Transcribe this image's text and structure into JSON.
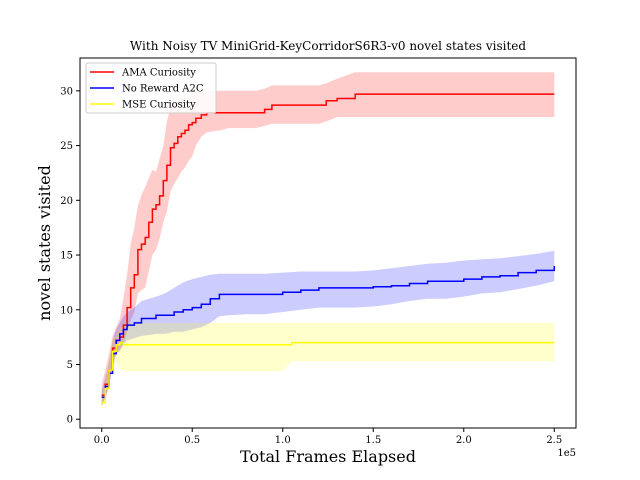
{
  "chart_data": {
    "type": "line",
    "title": "With Noisy TV MiniGrid-KeyCorridorS6R3-v0 novel states visited",
    "xlabel": "Total Frames Elapsed",
    "ylabel": "novel states visited",
    "x_offset_label": "1e5",
    "xlim": [
      -0.12,
      2.62
    ],
    "ylim": [
      -0.8,
      33
    ],
    "xticks": [
      0,
      0.5,
      1.0,
      1.5,
      2.0,
      2.5
    ],
    "xtick_labels": [
      "0.0",
      "0.5",
      "1.0",
      "1.5",
      "2.0",
      "2.5"
    ],
    "yticks": [
      0,
      5,
      10,
      15,
      20,
      25,
      30
    ],
    "ytick_labels": [
      "0",
      "5",
      "10",
      "15",
      "20",
      "25",
      "30"
    ],
    "grid": false,
    "legend_position": "top-left",
    "series": [
      {
        "name": "AMA Curiosity",
        "color": "#ff0000",
        "fill": "#ff0000",
        "x": [
          0,
          0.02,
          0.04,
          0.06,
          0.08,
          0.1,
          0.12,
          0.14,
          0.16,
          0.18,
          0.2,
          0.22,
          0.24,
          0.26,
          0.28,
          0.3,
          0.32,
          0.34,
          0.36,
          0.38,
          0.4,
          0.42,
          0.44,
          0.46,
          0.48,
          0.5,
          0.52,
          0.55,
          0.58,
          0.62,
          0.66,
          0.7,
          0.75,
          0.8,
          0.85,
          0.9,
          0.94,
          1.0,
          1.1,
          1.2,
          1.24,
          1.3,
          1.4,
          1.5,
          1.6,
          1.8,
          2.0,
          2.2,
          2.5
        ],
        "y": [
          2.2,
          3.2,
          4.5,
          6.5,
          7.2,
          7.5,
          8.6,
          10.2,
          12.0,
          13.2,
          15.5,
          16.0,
          16.6,
          18.0,
          19.2,
          19.6,
          20.4,
          21.8,
          23.2,
          24.8,
          25.2,
          25.8,
          26.1,
          26.4,
          26.9,
          27.1,
          27.5,
          27.8,
          28.0,
          28.0,
          28.0,
          28.0,
          28.0,
          28.0,
          28.0,
          28.3,
          28.7,
          28.7,
          28.7,
          28.7,
          29.1,
          29.3,
          29.7,
          29.7,
          29.7,
          29.7,
          29.7,
          29.7,
          29.7
        ],
        "upper": [
          3.2,
          4.5,
          6.0,
          7.6,
          8.4,
          9.2,
          11.0,
          13.2,
          16.0,
          17.5,
          19.5,
          20.5,
          21.2,
          22.0,
          22.8,
          22.6,
          23.8,
          25.0,
          27.2,
          28.5,
          29.0,
          29.2,
          29.4,
          29.5,
          29.6,
          29.7,
          29.8,
          29.9,
          30.0,
          30.0,
          30.0,
          30.0,
          30.0,
          30.0,
          30.0,
          30.2,
          30.5,
          30.5,
          30.5,
          30.5,
          30.7,
          31.1,
          31.7,
          31.7,
          31.7,
          31.7,
          31.7,
          31.7,
          31.7
        ],
        "lower": [
          1.2,
          2.0,
          3.0,
          5.0,
          6.0,
          6.2,
          6.8,
          8.0,
          9.0,
          9.8,
          11.5,
          11.8,
          12.0,
          13.5,
          15.0,
          15.5,
          16.5,
          18.0,
          19.0,
          20.8,
          21.5,
          22.0,
          22.6,
          23.0,
          23.6,
          24.0,
          25.0,
          25.8,
          26.2,
          26.3,
          26.4,
          26.6,
          26.6,
          26.6,
          26.6,
          26.8,
          27.0,
          27.0,
          27.0,
          27.0,
          27.2,
          27.6,
          27.6,
          27.6,
          27.6,
          27.6,
          27.6,
          27.6,
          27.6
        ]
      },
      {
        "name": "No Reward A2C",
        "color": "#0000ff",
        "fill": "#0000ff",
        "x": [
          0,
          0.02,
          0.04,
          0.06,
          0.08,
          0.1,
          0.12,
          0.14,
          0.18,
          0.22,
          0.3,
          0.35,
          0.4,
          0.45,
          0.5,
          0.55,
          0.6,
          0.65,
          0.7,
          0.8,
          0.9,
          1.0,
          1.1,
          1.2,
          1.3,
          1.4,
          1.5,
          1.6,
          1.7,
          1.8,
          1.9,
          2.0,
          2.1,
          2.2,
          2.3,
          2.4,
          2.5
        ],
        "y": [
          2.0,
          3.0,
          4.2,
          6.0,
          7.2,
          7.8,
          8.2,
          8.6,
          8.8,
          9.2,
          9.5,
          9.5,
          9.8,
          10.0,
          10.2,
          10.5,
          11.0,
          11.4,
          11.4,
          11.4,
          11.4,
          11.6,
          11.8,
          12.0,
          12.0,
          12.0,
          12.1,
          12.2,
          12.4,
          12.6,
          12.6,
          12.8,
          13.0,
          13.1,
          13.4,
          13.6,
          14.0
        ],
        "upper": [
          2.6,
          3.8,
          5.2,
          7.2,
          8.2,
          8.8,
          9.4,
          9.8,
          10.2,
          10.8,
          11.2,
          11.5,
          12.0,
          12.5,
          12.8,
          13.0,
          13.2,
          13.3,
          13.3,
          13.3,
          13.3,
          13.4,
          13.5,
          13.5,
          13.5,
          13.5,
          13.6,
          13.8,
          14.0,
          14.2,
          14.3,
          14.5,
          14.6,
          14.7,
          14.9,
          15.1,
          15.4
        ],
        "lower": [
          1.2,
          2.0,
          3.0,
          4.8,
          6.0,
          6.4,
          6.8,
          7.2,
          7.4,
          7.6,
          7.8,
          7.8,
          8.0,
          8.0,
          8.2,
          8.4,
          8.8,
          9.4,
          9.5,
          9.6,
          9.6,
          9.8,
          10.0,
          10.2,
          10.2,
          10.2,
          10.3,
          10.5,
          10.8,
          11.0,
          11.0,
          11.2,
          11.5,
          11.6,
          11.9,
          12.2,
          12.6
        ]
      },
      {
        "name": "MSE Curiosity",
        "color": "#ffff00",
        "fill": "#ffff00",
        "x": [
          0,
          0.02,
          0.04,
          0.06,
          0.08,
          0.1,
          0.12,
          0.16,
          0.2,
          0.3,
          0.4,
          0.5,
          0.6,
          0.7,
          0.8,
          0.9,
          1.0,
          1.05,
          1.1,
          1.2,
          1.4,
          1.6,
          1.8,
          2.0,
          2.2,
          2.5
        ],
        "y": [
          1.5,
          2.8,
          4.5,
          6.2,
          6.8,
          7.0,
          6.8,
          6.8,
          6.8,
          6.8,
          6.8,
          6.8,
          6.8,
          6.8,
          6.8,
          6.8,
          6.8,
          7.0,
          7.0,
          7.0,
          7.0,
          7.0,
          7.0,
          7.0,
          7.0,
          7.0
        ],
        "upper": [
          2.2,
          3.6,
          5.5,
          7.4,
          7.6,
          8.4,
          8.6,
          8.8,
          8.8,
          8.8,
          8.8,
          8.8,
          8.8,
          8.8,
          8.8,
          8.8,
          8.8,
          8.8,
          8.8,
          8.8,
          8.8,
          8.8,
          8.8,
          8.8,
          8.8,
          8.8
        ],
        "lower": [
          0.8,
          2.0,
          3.4,
          4.8,
          5.2,
          4.6,
          4.4,
          4.4,
          4.4,
          4.4,
          4.4,
          4.4,
          4.4,
          4.4,
          4.4,
          4.4,
          4.4,
          5.3,
          5.3,
          5.3,
          5.3,
          5.3,
          5.3,
          5.3,
          5.3,
          5.3
        ]
      }
    ]
  }
}
